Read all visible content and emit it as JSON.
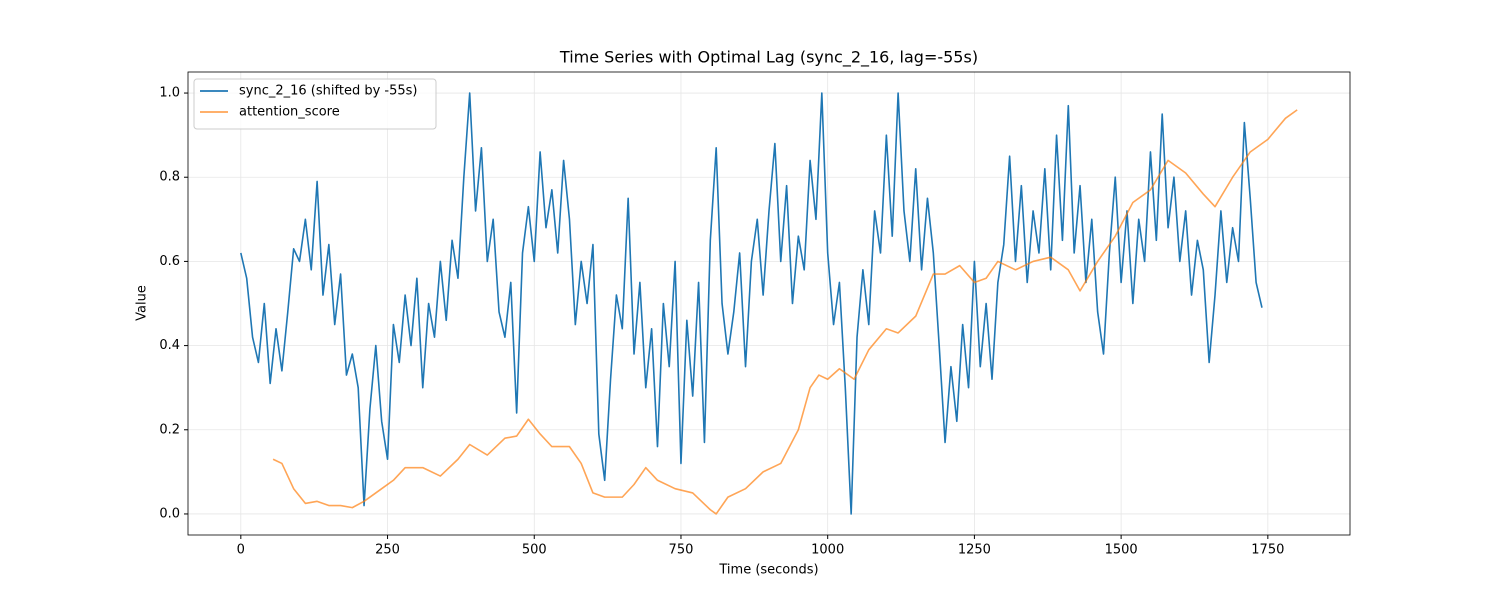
{
  "chart_data": {
    "type": "line",
    "title": "Time Series with Optimal Lag (sync_2_16, lag=-55s)",
    "x_label": "Time (seconds)",
    "y_label": "Value",
    "grid": true,
    "legend": "upper left",
    "xlim": [
      -90,
      1890
    ],
    "ylim": [
      -0.05,
      1.05
    ],
    "xticks": [
      0,
      250,
      500,
      750,
      1000,
      1250,
      1500,
      1750
    ],
    "yticks": [
      {
        "value": 0,
        "label": "0.0"
      },
      {
        "value": 0.2,
        "label": "0.2"
      },
      {
        "value": 0.4,
        "label": "0.4"
      },
      {
        "value": 0.6,
        "label": "0.6"
      },
      {
        "value": 0.8,
        "label": "0.8"
      },
      {
        "value": 1,
        "label": "1.0"
      }
    ],
    "series": [
      {
        "name": "sync_2_16 (shifted by -55s)",
        "color": "#1f77b4",
        "opacity": 1,
        "x": [
          0,
          10,
          20,
          30,
          40,
          50,
          60,
          70,
          80,
          90,
          100,
          110,
          120,
          130,
          140,
          150,
          160,
          170,
          180,
          190,
          200,
          210,
          220,
          230,
          240,
          250,
          260,
          270,
          280,
          290,
          300,
          310,
          320,
          330,
          340,
          350,
          360,
          370,
          380,
          390,
          400,
          410,
          420,
          430,
          440,
          450,
          460,
          470,
          480,
          490,
          500,
          510,
          520,
          530,
          540,
          550,
          560,
          570,
          580,
          590,
          600,
          610,
          620,
          630,
          640,
          650,
          660,
          670,
          680,
          690,
          700,
          710,
          720,
          730,
          740,
          750,
          760,
          770,
          780,
          790,
          800,
          810,
          820,
          830,
          840,
          850,
          860,
          870,
          880,
          890,
          900,
          910,
          920,
          930,
          940,
          950,
          960,
          970,
          980,
          990,
          1000,
          1010,
          1020,
          1030,
          1040,
          1050,
          1060,
          1070,
          1080,
          1090,
          1100,
          1110,
          1120,
          1130,
          1140,
          1150,
          1160,
          1170,
          1180,
          1190,
          1200,
          1210,
          1220,
          1230,
          1240,
          1250,
          1260,
          1270,
          1280,
          1290,
          1300,
          1310,
          1320,
          1330,
          1340,
          1350,
          1360,
          1370,
          1380,
          1390,
          1400,
          1410,
          1420,
          1430,
          1440,
          1450,
          1460,
          1470,
          1480,
          1490,
          1500,
          1510,
          1520,
          1530,
          1540,
          1550,
          1560,
          1570,
          1580,
          1590,
          1600,
          1610,
          1620,
          1630,
          1640,
          1650,
          1660,
          1670,
          1680,
          1690,
          1700,
          1710,
          1720,
          1730,
          1740
        ],
        "values": [
          0.62,
          0.56,
          0.42,
          0.36,
          0.5,
          0.31,
          0.44,
          0.34,
          0.48,
          0.63,
          0.6,
          0.7,
          0.58,
          0.79,
          0.52,
          0.64,
          0.45,
          0.57,
          0.33,
          0.38,
          0.3,
          0.02,
          0.25,
          0.4,
          0.22,
          0.13,
          0.45,
          0.36,
          0.52,
          0.4,
          0.56,
          0.3,
          0.5,
          0.42,
          0.6,
          0.46,
          0.65,
          0.56,
          0.8,
          1.0,
          0.72,
          0.87,
          0.6,
          0.7,
          0.48,
          0.42,
          0.55,
          0.24,
          0.62,
          0.73,
          0.6,
          0.86,
          0.68,
          0.77,
          0.62,
          0.84,
          0.7,
          0.45,
          0.6,
          0.5,
          0.64,
          0.19,
          0.08,
          0.32,
          0.52,
          0.44,
          0.75,
          0.38,
          0.55,
          0.3,
          0.44,
          0.16,
          0.5,
          0.35,
          0.6,
          0.12,
          0.46,
          0.28,
          0.55,
          0.17,
          0.65,
          0.87,
          0.5,
          0.38,
          0.48,
          0.62,
          0.35,
          0.6,
          0.7,
          0.52,
          0.72,
          0.88,
          0.6,
          0.78,
          0.5,
          0.66,
          0.58,
          0.84,
          0.7,
          1.0,
          0.62,
          0.45,
          0.55,
          0.3,
          0.0,
          0.42,
          0.58,
          0.45,
          0.72,
          0.62,
          0.9,
          0.66,
          1.0,
          0.72,
          0.6,
          0.82,
          0.58,
          0.75,
          0.62,
          0.4,
          0.17,
          0.35,
          0.22,
          0.45,
          0.3,
          0.6,
          0.35,
          0.5,
          0.32,
          0.55,
          0.64,
          0.85,
          0.6,
          0.78,
          0.55,
          0.72,
          0.62,
          0.82,
          0.58,
          0.9,
          0.65,
          0.97,
          0.62,
          0.78,
          0.55,
          0.7,
          0.48,
          0.38,
          0.62,
          0.8,
          0.55,
          0.72,
          0.5,
          0.7,
          0.6,
          0.86,
          0.65,
          0.95,
          0.68,
          0.8,
          0.6,
          0.72,
          0.52,
          0.65,
          0.58,
          0.36,
          0.52,
          0.72,
          0.55,
          0.68,
          0.6,
          0.93,
          0.75,
          0.55,
          0.49
        ]
      },
      {
        "name": "attention_score",
        "color": "#ff7f0e",
        "opacity": 0.7,
        "x": [
          55,
          70,
          90,
          110,
          130,
          150,
          170,
          190,
          210,
          240,
          260,
          280,
          310,
          340,
          370,
          390,
          420,
          450,
          470,
          490,
          510,
          530,
          560,
          580,
          600,
          620,
          650,
          670,
          690,
          710,
          740,
          770,
          800,
          810,
          830,
          860,
          890,
          920,
          950,
          970,
          985,
          1000,
          1020,
          1045,
          1070,
          1100,
          1120,
          1150,
          1180,
          1200,
          1225,
          1250,
          1270,
          1290,
          1320,
          1350,
          1380,
          1410,
          1430,
          1460,
          1490,
          1520,
          1550,
          1580,
          1610,
          1640,
          1660,
          1690,
          1720,
          1750,
          1780,
          1800
        ],
        "values": [
          0.13,
          0.12,
          0.06,
          0.025,
          0.03,
          0.02,
          0.02,
          0.015,
          0.03,
          0.06,
          0.08,
          0.11,
          0.11,
          0.09,
          0.13,
          0.165,
          0.14,
          0.18,
          0.185,
          0.225,
          0.19,
          0.16,
          0.16,
          0.12,
          0.05,
          0.04,
          0.04,
          0.07,
          0.11,
          0.08,
          0.06,
          0.05,
          0.01,
          0.0,
          0.04,
          0.06,
          0.1,
          0.12,
          0.2,
          0.3,
          0.33,
          0.32,
          0.345,
          0.32,
          0.39,
          0.44,
          0.43,
          0.47,
          0.57,
          0.57,
          0.59,
          0.55,
          0.56,
          0.6,
          0.58,
          0.6,
          0.61,
          0.58,
          0.53,
          0.6,
          0.66,
          0.74,
          0.77,
          0.84,
          0.81,
          0.76,
          0.73,
          0.8,
          0.86,
          0.89,
          0.94,
          0.96
        ]
      }
    ]
  }
}
